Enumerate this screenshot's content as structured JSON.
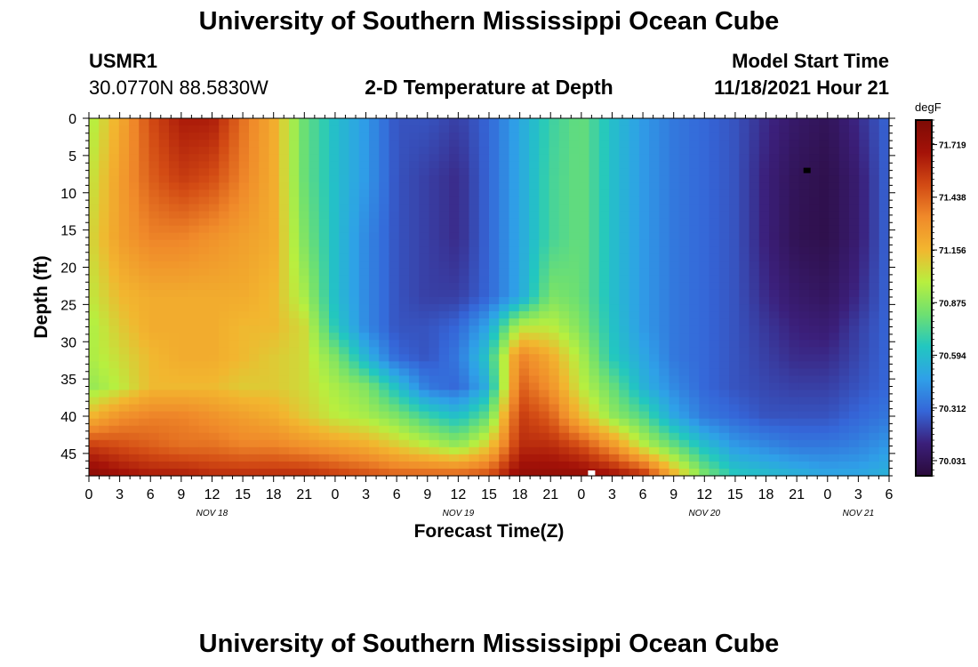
{
  "header": {
    "title": "University of Southern Mississippi Ocean Cube",
    "station_id": "USMR1",
    "coordinates": "30.0770N  88.5830W",
    "plot_title": "2-D Temperature at Depth",
    "model_start_label": "Model Start Time",
    "model_start_value": "11/18/2021 Hour 21"
  },
  "footer": {
    "title": "University of Southern Mississippi Ocean Cube"
  },
  "colors": {
    "palette": [
      "#2a0a3a",
      "#3b1f7a",
      "#3566d8",
      "#2fa0e8",
      "#22c7c0",
      "#6fe070",
      "#b8ef3f",
      "#f2b62f",
      "#f08a2a",
      "#d24a14",
      "#a41208",
      "#7d0b05"
    ]
  },
  "chart_data": {
    "type": "heatmap",
    "title": "2-D Temperature at Depth",
    "xlabel": "Forecast Time(Z)",
    "ylabel": "Depth (ft)",
    "colorbar_label": "degF",
    "colorbar_ticks": [
      70.031,
      70.312,
      70.594,
      70.875,
      71.156,
      71.438,
      71.719
    ],
    "colorbar_range": [
      69.95,
      71.85
    ],
    "x_range_hours": [
      0,
      78
    ],
    "x_tick_labels": [
      "0",
      "3",
      "6",
      "9",
      "12",
      "15",
      "18",
      "21",
      "0",
      "3",
      "6",
      "9",
      "12",
      "15",
      "18",
      "21",
      "0",
      "3",
      "6",
      "9",
      "12",
      "15",
      "18",
      "21",
      "0",
      "3",
      "6"
    ],
    "day_labels": [
      {
        "hour": 12,
        "label": "NOV 18"
      },
      {
        "hour": 36,
        "label": "NOV 19"
      },
      {
        "hour": 60,
        "label": "NOV 20"
      },
      {
        "hour": 75,
        "label": "NOV 21"
      }
    ],
    "y_range": [
      0,
      48
    ],
    "y_ticks": [
      0,
      5,
      10,
      15,
      20,
      25,
      30,
      35,
      40,
      45
    ],
    "y_tick_labels": [
      "0",
      "5",
      "10",
      "15",
      "20",
      "25",
      "30",
      "35",
      "40",
      "45"
    ],
    "depths_ft": [
      0,
      8,
      16,
      24,
      28,
      32,
      36,
      40,
      44,
      48
    ],
    "times_hours": [
      0,
      3,
      6,
      9,
      12,
      15,
      18,
      21,
      24,
      27,
      30,
      33,
      36,
      39,
      42,
      45,
      48,
      51,
      54,
      57,
      60,
      63,
      66,
      69,
      72,
      75,
      78
    ],
    "values_degF": [
      [
        70.95,
        71.2,
        71.5,
        71.65,
        71.65,
        71.4,
        71.2,
        70.8,
        70.6,
        70.45,
        70.25,
        70.25,
        70.2,
        70.3,
        70.5,
        70.7,
        70.8,
        70.6,
        70.45,
        70.35,
        70.3,
        70.25,
        70.15,
        70.07,
        70.03,
        70.15,
        70.3
      ],
      [
        71.0,
        71.25,
        71.45,
        71.55,
        71.5,
        71.35,
        71.2,
        70.8,
        70.6,
        70.45,
        70.25,
        70.2,
        70.15,
        70.3,
        70.5,
        70.72,
        70.8,
        70.6,
        70.45,
        70.35,
        70.3,
        70.25,
        70.12,
        70.03,
        70.0,
        70.1,
        70.3
      ],
      [
        71.05,
        71.25,
        71.35,
        71.35,
        71.3,
        71.25,
        71.2,
        70.85,
        70.6,
        70.4,
        70.25,
        70.2,
        70.15,
        70.3,
        70.5,
        70.72,
        70.8,
        70.6,
        70.45,
        70.35,
        70.3,
        70.25,
        70.12,
        70.02,
        70.0,
        70.1,
        70.3
      ],
      [
        71.0,
        71.15,
        71.2,
        71.2,
        71.2,
        71.2,
        71.15,
        70.95,
        70.6,
        70.4,
        70.25,
        70.2,
        70.2,
        70.3,
        70.5,
        70.85,
        70.8,
        70.6,
        70.45,
        70.35,
        70.3,
        70.25,
        70.15,
        70.08,
        70.05,
        70.15,
        70.3
      ],
      [
        70.95,
        71.1,
        71.2,
        71.2,
        71.2,
        71.15,
        71.15,
        71.05,
        70.65,
        70.4,
        70.25,
        70.25,
        70.3,
        70.5,
        71.0,
        71.0,
        70.85,
        70.62,
        70.45,
        70.35,
        70.3,
        70.25,
        70.18,
        70.12,
        70.1,
        70.2,
        70.3
      ],
      [
        70.95,
        71.05,
        71.15,
        71.2,
        71.2,
        71.15,
        71.1,
        71.05,
        70.85,
        70.55,
        70.3,
        70.25,
        70.35,
        70.65,
        71.35,
        71.2,
        70.95,
        70.65,
        70.5,
        70.35,
        70.3,
        70.25,
        70.2,
        70.15,
        70.15,
        70.22,
        70.3
      ],
      [
        70.9,
        71.0,
        71.15,
        71.15,
        71.15,
        71.1,
        71.1,
        71.05,
        70.95,
        70.85,
        70.6,
        70.35,
        70.3,
        70.55,
        71.45,
        71.3,
        71.0,
        70.8,
        70.55,
        70.4,
        70.3,
        70.25,
        70.22,
        70.2,
        70.2,
        70.25,
        70.3
      ],
      [
        71.15,
        71.3,
        71.35,
        71.35,
        71.3,
        71.25,
        71.2,
        71.1,
        71.0,
        70.95,
        70.85,
        70.7,
        70.6,
        70.8,
        71.55,
        71.45,
        71.15,
        70.9,
        70.75,
        70.5,
        70.35,
        70.3,
        70.25,
        70.25,
        70.25,
        70.3,
        70.35
      ],
      [
        71.55,
        71.5,
        71.45,
        71.4,
        71.4,
        71.35,
        71.35,
        71.3,
        71.25,
        71.2,
        71.1,
        71.0,
        70.9,
        71.1,
        71.6,
        71.6,
        71.5,
        71.3,
        71.0,
        70.8,
        70.6,
        70.45,
        70.4,
        70.35,
        70.35,
        70.38,
        70.45
      ],
      [
        71.8,
        71.7,
        71.65,
        71.65,
        71.6,
        71.6,
        71.6,
        71.6,
        71.55,
        71.5,
        71.45,
        71.45,
        71.45,
        71.5,
        71.75,
        71.75,
        71.75,
        71.7,
        71.6,
        71.2,
        70.85,
        70.65,
        70.6,
        70.55,
        70.5,
        70.5,
        70.55
      ]
    ],
    "markers": [
      {
        "hour": 70,
        "depth": 7,
        "color": "#000000"
      },
      {
        "hour": 49,
        "depth": 48,
        "color": "#ffffff"
      }
    ]
  }
}
